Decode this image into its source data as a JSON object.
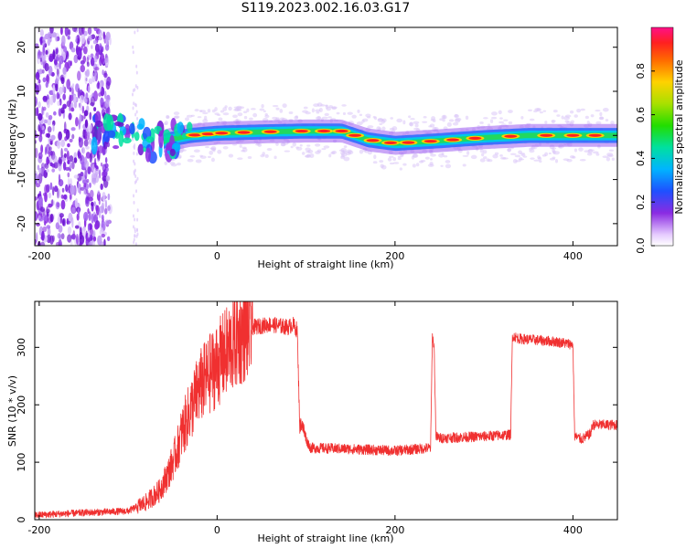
{
  "title": "S119.2023.002.16.03.G17",
  "chart_data": [
    {
      "type": "heatmap",
      "xlabel": "Height of straight line (km)",
      "ylabel": "Frequency (Hz)",
      "xlim": [
        -205,
        450
      ],
      "ylim": [
        -25,
        24.5
      ],
      "xticks": [
        -200,
        0,
        200,
        400
      ],
      "yticks": [
        -20,
        -10,
        0,
        10,
        20
      ],
      "colorbar": {
        "label": "Normalized spectral amplitude",
        "range": [
          0,
          1
        ],
        "ticks": [
          0.0,
          0.2,
          0.4,
          0.6,
          0.8
        ],
        "ticks_rotated": true
      },
      "ridge": [
        {
          "x": -140,
          "y": 0.5
        },
        {
          "x": -100,
          "y": 1.0
        },
        {
          "x": -85,
          "y": 0.0
        },
        {
          "x": -70,
          "y": -2.0
        },
        {
          "x": -55,
          "y": -1.0
        },
        {
          "x": -30,
          "y": 0.0
        },
        {
          "x": 0,
          "y": 0.5
        },
        {
          "x": 50,
          "y": 0.8
        },
        {
          "x": 100,
          "y": 1.0
        },
        {
          "x": 140,
          "y": 1.0
        },
        {
          "x": 170,
          "y": -1.0
        },
        {
          "x": 200,
          "y": -1.8
        },
        {
          "x": 250,
          "y": -1.2
        },
        {
          "x": 300,
          "y": -0.5
        },
        {
          "x": 350,
          "y": 0.0
        },
        {
          "x": 450,
          "y": 0.0
        }
      ],
      "grid": false
    },
    {
      "type": "line",
      "xlabel": "Height of straight line (km)",
      "ylabel": "SNR (10 * v/v)",
      "xlim": [
        -205,
        450
      ],
      "ylim": [
        0,
        380
      ],
      "xticks": [
        -200,
        0,
        200,
        400
      ],
      "yticks": [
        0,
        100,
        200,
        300
      ],
      "series": [
        {
          "color": "#f03030",
          "x": [
            -205,
            -150,
            -100,
            -80,
            -65,
            -55,
            -45,
            -40,
            -30,
            -20,
            -10,
            0,
            10,
            20,
            30,
            40,
            60,
            80,
            85,
            90,
            93,
            95,
            100,
            105,
            150,
            200,
            240,
            242,
            244,
            246,
            250,
            300,
            330,
            332,
            340,
            380,
            400,
            402,
            410,
            420,
            422,
            450
          ],
          "y": [
            8,
            12,
            15,
            30,
            50,
            80,
            120,
            150,
            190,
            230,
            250,
            270,
            290,
            310,
            325,
            335,
            340,
            335,
            340,
            330,
            160,
            170,
            140,
            125,
            123,
            120,
            125,
            320,
            300,
            145,
            142,
            145,
            148,
            320,
            315,
            310,
            305,
            145,
            140,
            150,
            165,
            165
          ]
        }
      ],
      "grid": false
    }
  ]
}
